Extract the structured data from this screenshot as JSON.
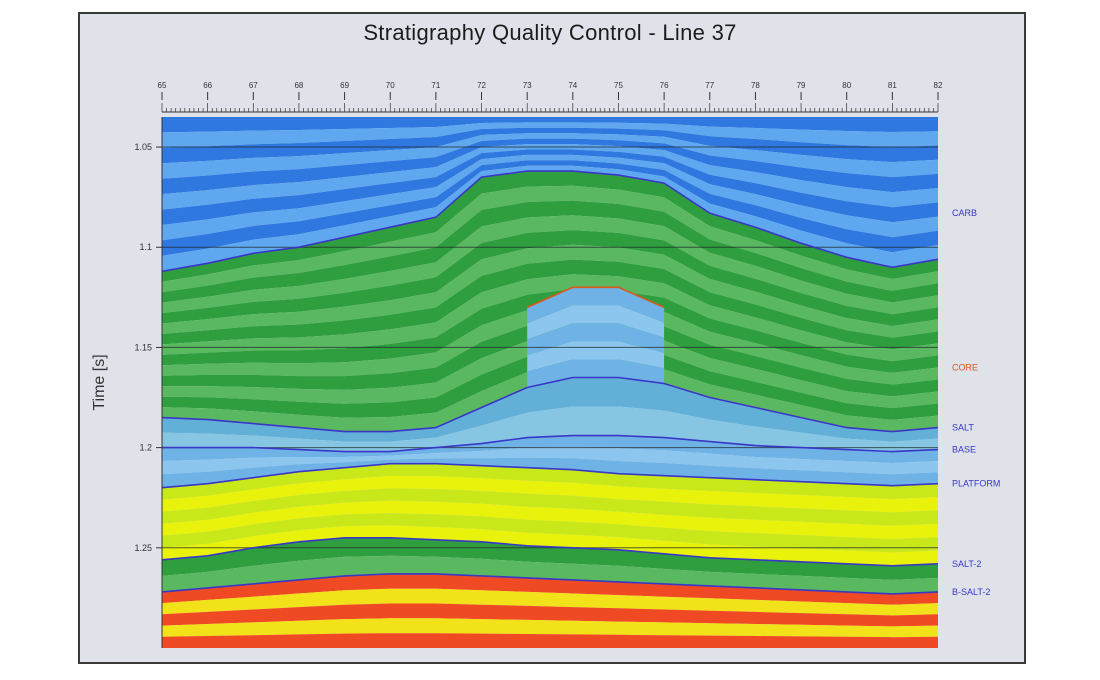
{
  "chart_data": {
    "type": "heatmap",
    "title": "Stratigraphy Quality Control - Line 37",
    "ylabel": "Time [s]",
    "xlabel": "",
    "ylim": [
      1.035,
      1.3
    ],
    "y_reversed": true,
    "grid": true,
    "y_ticks": [
      {
        "value": 1.05,
        "label": "1.05"
      },
      {
        "value": 1.1,
        "label": "1.1"
      },
      {
        "value": 1.15,
        "label": "1.15"
      },
      {
        "value": 1.2,
        "label": "1.2"
      },
      {
        "value": 1.25,
        "label": "1.25"
      }
    ],
    "x_header_labels": [
      "65",
      "66",
      "67",
      "68",
      "69",
      "70",
      "71",
      "72",
      "73",
      "74",
      "75",
      "76",
      "77",
      "78",
      "79",
      "80",
      "81",
      "82"
    ],
    "x_position": [
      0,
      1,
      2,
      3,
      4,
      5,
      6,
      7,
      8,
      9,
      10,
      11,
      12,
      13,
      14,
      15,
      16,
      17
    ],
    "horizons": [
      {
        "name": "CARB",
        "color": "#3a36c8",
        "time": [
          1.112,
          1.108,
          1.103,
          1.1,
          1.095,
          1.09,
          1.085,
          1.065,
          1.062,
          1.062,
          1.064,
          1.068,
          1.083,
          1.09,
          1.098,
          1.105,
          1.11,
          1.106
        ]
      },
      {
        "name": "CORE",
        "color": "#d8591a",
        "time": [
          null,
          null,
          null,
          null,
          null,
          null,
          null,
          null,
          1.13,
          1.12,
          1.12,
          1.13,
          null,
          null,
          null,
          null,
          null,
          null
        ]
      },
      {
        "name": "SALT",
        "color": "#3a36c8",
        "time": [
          1.185,
          1.186,
          1.188,
          1.19,
          1.192,
          1.192,
          1.19,
          1.18,
          1.17,
          1.165,
          1.165,
          1.168,
          1.175,
          1.18,
          1.185,
          1.19,
          1.192,
          1.19
        ]
      },
      {
        "name": "BASE",
        "color": "#3a36c8",
        "time": [
          1.2,
          1.2,
          1.2,
          1.201,
          1.202,
          1.202,
          1.2,
          1.198,
          1.195,
          1.194,
          1.194,
          1.195,
          1.197,
          1.199,
          1.2,
          1.201,
          1.202,
          1.201
        ]
      },
      {
        "name": "PLATFORM",
        "color": "#3a36c8",
        "time": [
          1.22,
          1.218,
          1.215,
          1.212,
          1.21,
          1.208,
          1.208,
          1.209,
          1.21,
          1.211,
          1.213,
          1.214,
          1.215,
          1.216,
          1.217,
          1.218,
          1.219,
          1.218
        ]
      },
      {
        "name": "SALT-2",
        "color": "#3a36c8",
        "time": [
          1.256,
          1.254,
          1.25,
          1.247,
          1.245,
          1.245,
          1.246,
          1.247,
          1.249,
          1.25,
          1.251,
          1.253,
          1.255,
          1.256,
          1.257,
          1.258,
          1.259,
          1.258
        ]
      },
      {
        "name": "B-SALT-2",
        "color": "#3a36c8",
        "time": [
          1.272,
          1.27,
          1.268,
          1.266,
          1.264,
          1.263,
          1.263,
          1.264,
          1.265,
          1.266,
          1.267,
          1.268,
          1.269,
          1.27,
          1.271,
          1.272,
          1.273,
          1.272
        ]
      }
    ],
    "formation_colors": {
      "carbonate": [
        "#2f78e0",
        "#5fa8f0"
      ],
      "shale": [
        "#2f9e3e",
        "#5ab860"
      ],
      "core": [
        "#6fb2e6",
        "#8cc6ee"
      ],
      "salt": [
        "#62b0d8",
        "#86c6e2"
      ],
      "platform": [
        "#c8e81a",
        "#e8f20a"
      ],
      "deep": [
        "#ef4a24",
        "#f2e21a"
      ]
    }
  }
}
